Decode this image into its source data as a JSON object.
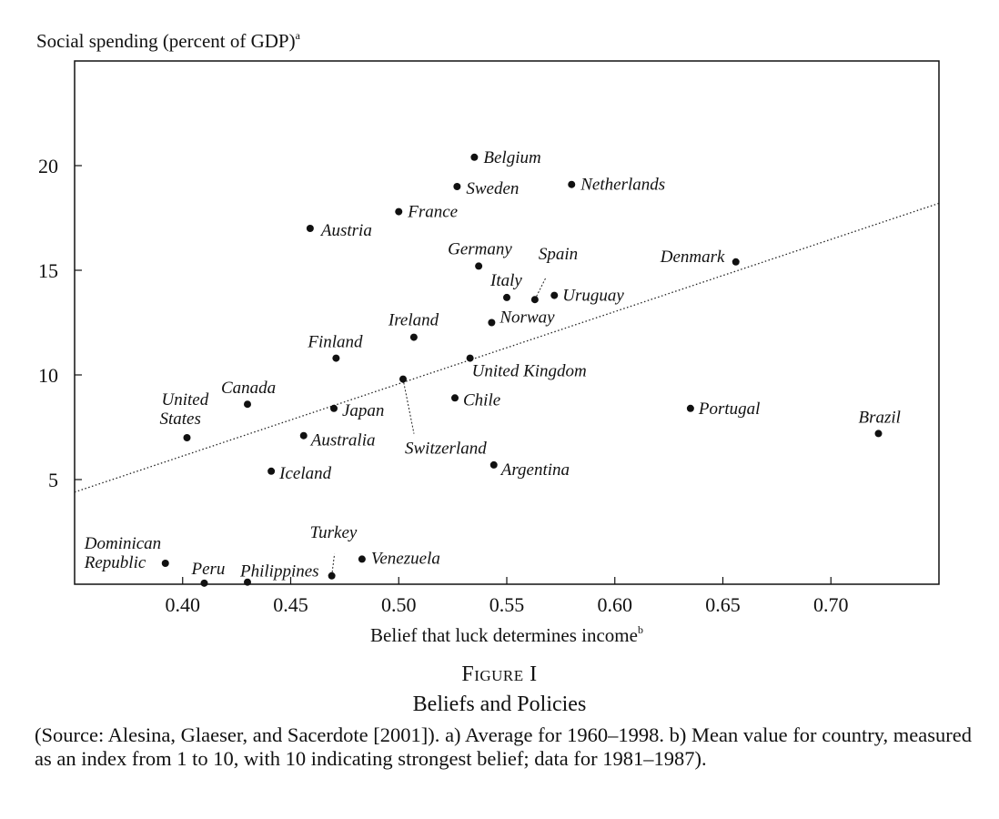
{
  "figure": {
    "number_label": "Figure I",
    "title": "Beliefs and Policies",
    "caption": "(Source: Alesina, Glaeser, and Sacerdote [2001]). a) Average for 1960–1998. b) Mean value for country, measured as an index from 1 to 10, with 10 indicating strongest belief; data for 1981–1987)."
  },
  "chart_data": {
    "type": "scatter",
    "title": "",
    "ylabel": "Social spending (percent of GDP)",
    "ylabel_superscript": "a",
    "xlabel": "Belief that luck determines income",
    "xlabel_superscript": "b",
    "xlim": [
      0.35,
      0.75
    ],
    "ylim": [
      0,
      25
    ],
    "xticks": [
      "0.40",
      "0.45",
      "0.50",
      "0.55",
      "0.60",
      "0.65",
      "0.70"
    ],
    "xtick_values": [
      0.4,
      0.45,
      0.5,
      0.55,
      0.6,
      0.65,
      0.7
    ],
    "yticks": [
      "5",
      "10",
      "15",
      "20"
    ],
    "ytick_values": [
      5,
      10,
      15,
      20
    ],
    "grid": false,
    "legend": "none",
    "trend_line": {
      "style": "dotted",
      "x": [
        0.35,
        0.75
      ],
      "y": [
        4.4,
        18.2
      ]
    },
    "series": [
      {
        "points": [
          {
            "label": "Belgium",
            "x": 0.535,
            "y": 20.4
          },
          {
            "label": "Sweden",
            "x": 0.527,
            "y": 19.0
          },
          {
            "label": "Netherlands",
            "x": 0.58,
            "y": 19.1
          },
          {
            "label": "France",
            "x": 0.5,
            "y": 17.8
          },
          {
            "label": "Austria",
            "x": 0.459,
            "y": 17.0
          },
          {
            "label": "Germany",
            "x": 0.537,
            "y": 15.2
          },
          {
            "label": "Spain",
            "x": 0.563,
            "y": 13.6
          },
          {
            "label": "Italy",
            "x": 0.55,
            "y": 13.7
          },
          {
            "label": "Uruguay",
            "x": 0.572,
            "y": 13.8
          },
          {
            "label": "Denmark",
            "x": 0.656,
            "y": 15.4
          },
          {
            "label": "Norway",
            "x": 0.543,
            "y": 12.5
          },
          {
            "label": "Ireland",
            "x": 0.507,
            "y": 11.8
          },
          {
            "label": "Finland",
            "x": 0.471,
            "y": 10.8
          },
          {
            "label": "United Kingdom",
            "x": 0.533,
            "y": 10.8
          },
          {
            "label": "Canada",
            "x": 0.43,
            "y": 8.6
          },
          {
            "label": "Switzerland",
            "x": 0.502,
            "y": 9.8
          },
          {
            "label": "Chile",
            "x": 0.526,
            "y": 8.9
          },
          {
            "label": "Japan",
            "x": 0.47,
            "y": 8.4
          },
          {
            "label": "Portugal",
            "x": 0.635,
            "y": 8.4
          },
          {
            "label": "Brazil",
            "x": 0.722,
            "y": 7.2
          },
          {
            "label": "United States",
            "x": 0.402,
            "y": 7.0
          },
          {
            "label": "Australia",
            "x": 0.456,
            "y": 7.1
          },
          {
            "label": "Argentina",
            "x": 0.544,
            "y": 5.7
          },
          {
            "label": "Iceland",
            "x": 0.441,
            "y": 5.4
          },
          {
            "label": "Dominican Republic",
            "x": 0.392,
            "y": 1.0
          },
          {
            "label": "Venezuela",
            "x": 0.483,
            "y": 1.2
          },
          {
            "label": "Turkey",
            "x": 0.469,
            "y": 0.4
          },
          {
            "label": "Philippines",
            "x": 0.43,
            "y": 0.1
          },
          {
            "label": "Peru",
            "x": 0.41,
            "y": 0.05
          }
        ]
      }
    ]
  }
}
